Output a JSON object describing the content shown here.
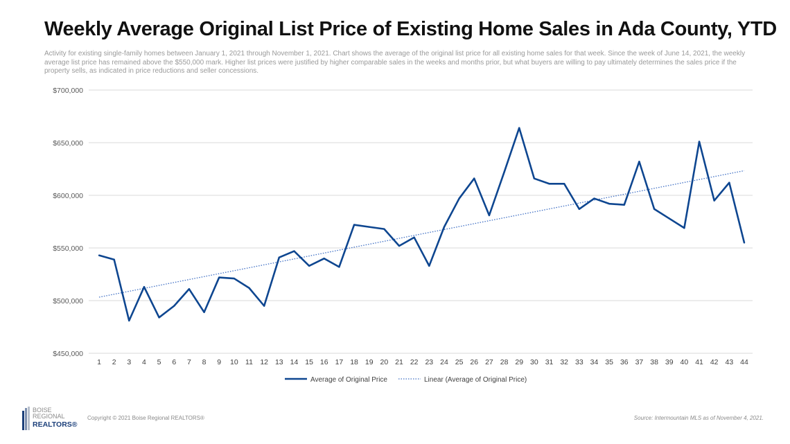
{
  "header": {
    "title": "Weekly Average Original List Price of Existing Home Sales in Ada County, YTD",
    "subtitle": "Activity for existing single-family homes between January 1, 2021 through November 1, 2021. Chart shows the average of the original list price for all existing home sales for that week.  Since the week of June 14, 2021, the weekly  average list price has remained above the $550,000 mark.  Higher list prices were justified by higher comparable sales in the weeks  and months prior, but what buyers are willing to pay ultimately determines the sales price if the property sells, as indicated in price reductions and seller concessions."
  },
  "chart_data": {
    "type": "line",
    "x": [
      1,
      2,
      3,
      4,
      5,
      6,
      7,
      8,
      9,
      10,
      11,
      12,
      13,
      14,
      15,
      16,
      17,
      18,
      19,
      20,
      21,
      22,
      23,
      24,
      25,
      26,
      27,
      28,
      29,
      30,
      31,
      32,
      33,
      34,
      35,
      36,
      37,
      38,
      39,
      40,
      41,
      42,
      43,
      44
    ],
    "series": [
      {
        "name": "Average of Original Price",
        "color": "#0e4690",
        "style": "solid",
        "values": [
          543000,
          539000,
          481000,
          513000,
          484000,
          495000,
          511000,
          489000,
          522000,
          521000,
          512000,
          495000,
          541000,
          547000,
          533000,
          540000,
          532000,
          572000,
          570000,
          568000,
          552000,
          560000,
          533000,
          570000,
          597000,
          616000,
          581000,
          622000,
          664000,
          616000,
          611000,
          611000,
          587000,
          597000,
          592000,
          591000,
          632000,
          587000,
          578000,
          569000,
          651000,
          595000,
          612000,
          555000
        ]
      },
      {
        "name": "Linear (Average of Original Price)",
        "color": "#3f6fc4",
        "style": "dotted",
        "trendline": "linear"
      }
    ],
    "ylim": [
      450000,
      700000
    ],
    "yticks": [
      "$450,000",
      "$500,000",
      "$550,000",
      "$600,000",
      "$650,000",
      "$700,000"
    ],
    "grid": true,
    "legend": "bottom"
  },
  "footer": {
    "copyright": "Copyright © 2021 Boise Regional REALTORS®",
    "source": "Source: Intermountain MLS as of November 4, 2021.",
    "logo": [
      "BOISE",
      "REGIONAL",
      "REALTORS®"
    ]
  }
}
